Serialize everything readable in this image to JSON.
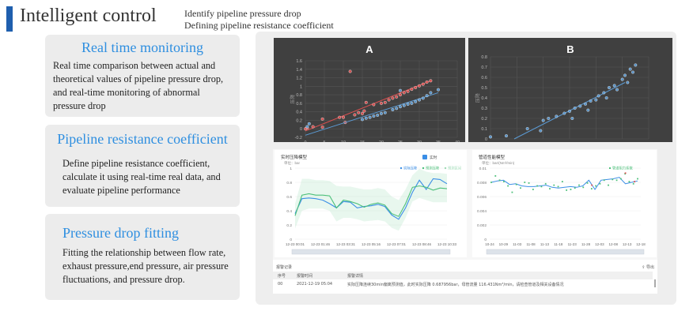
{
  "header": {
    "title": "Intelligent control",
    "subtitle_lines": [
      "Identify pipeline pressure drop",
      "Defining pipeline resistance coefficient"
    ]
  },
  "cards": [
    {
      "title": "Real time monitoring",
      "text": "Real time comparison between actual and theoretical values of pipeline pressure drop, and real-time monitoring of abnormal pressure drop"
    },
    {
      "title": "Pipeline resistance coefficient",
      "text": "Define pipeline resistance coefficient, calculate it using real-time real data, and evaluate pipeline performance"
    },
    {
      "title": "Pressure drop fitting",
      "text": "Fitting the relationship between flow rate, exhaust pressure,end pressure, air pressure fluctuations, and pressure drop."
    }
  ],
  "colors": {
    "accent": "#2f8fe0",
    "dark_bg": "#404040",
    "red": "#e05050",
    "blue": "#5b9bd5",
    "green": "#4cc07a",
    "line_blue": "#3a8ee6"
  },
  "chart_data": [
    {
      "type": "scatter",
      "title": "A",
      "ylabel": "压降",
      "xlim": [
        0,
        40
      ],
      "ylim": [
        -0.2,
        1.6
      ],
      "xticks": [
        "0",
        "5",
        "10",
        "15",
        "20",
        "25",
        "30",
        "35",
        "40"
      ],
      "yticks": [
        "-0.2",
        "0",
        "0.2",
        "0.4",
        "0.6",
        "0.8",
        "1",
        "1.2",
        "1.4",
        "1.6"
      ],
      "series": [
        {
          "color": "#e05050",
          "points": [
            [
              0,
              0
            ],
            [
              0.5,
              0.02
            ],
            [
              2,
              0.05
            ],
            [
              4.5,
              0.23
            ],
            [
              4.5,
              0.04
            ],
            [
              9,
              0.27
            ],
            [
              10,
              0.27
            ],
            [
              10.5,
              0.15
            ],
            [
              11.8,
              1.35
            ],
            [
              13,
              0.33
            ],
            [
              14,
              0.38
            ],
            [
              15,
              0.36
            ],
            [
              15.5,
              0.42
            ],
            [
              16,
              0.62
            ],
            [
              18,
              0.57
            ],
            [
              20,
              0.6
            ],
            [
              21,
              0.62
            ],
            [
              22,
              0.68
            ],
            [
              23,
              0.72
            ],
            [
              24,
              0.75
            ],
            [
              25,
              0.8
            ],
            [
              26,
              0.85
            ],
            [
              27,
              0.88
            ],
            [
              28,
              0.93
            ],
            [
              29,
              0.97
            ],
            [
              30,
              1.01
            ],
            [
              31,
              1.05
            ],
            [
              32,
              1.1
            ],
            [
              33,
              1.13
            ]
          ],
          "trend": [
            [
              0,
              -0.05
            ],
            [
              33,
              1.13
            ]
          ]
        },
        {
          "color": "#5b9bd5",
          "points": [
            [
              0.5,
              0.05
            ],
            [
              1,
              0.12
            ],
            [
              15,
              0.22
            ],
            [
              16,
              0.25
            ],
            [
              17,
              0.27
            ],
            [
              18,
              0.3
            ],
            [
              19,
              0.32
            ],
            [
              20,
              0.36
            ],
            [
              21,
              0.38
            ],
            [
              23,
              0.45
            ],
            [
              24,
              0.48
            ],
            [
              25,
              0.52
            ],
            [
              25,
              0.9
            ],
            [
              26,
              0.55
            ],
            [
              27,
              0.58
            ],
            [
              28,
              0.6
            ],
            [
              29,
              0.64
            ],
            [
              30,
              0.68
            ],
            [
              31,
              0.72
            ],
            [
              32,
              0.78
            ],
            [
              33,
              0.85
            ],
            [
              35,
              0.92
            ]
          ],
          "trend": [
            [
              0,
              -0.15
            ],
            [
              35,
              0.85
            ]
          ]
        }
      ]
    },
    {
      "type": "scatter",
      "title": "B",
      "ylabel": "压降",
      "xlim": [
        0,
        6
      ],
      "ylim": [
        0,
        0.8
      ],
      "yticks": [
        "0",
        "0.1",
        "0.2",
        "0.3",
        "0.4",
        "0.5",
        "0.6",
        "0.7",
        "0.8"
      ],
      "series": [
        {
          "color": "#5b9bd5",
          "points": [
            [
              0,
              0.02
            ],
            [
              0.6,
              0.03
            ],
            [
              1.4,
              0.1
            ],
            [
              1.9,
              0.08
            ],
            [
              2,
              0.18
            ],
            [
              2.2,
              0.2
            ],
            [
              2.5,
              0.22
            ],
            [
              2.8,
              0.25
            ],
            [
              3,
              0.27
            ],
            [
              3.1,
              0.2
            ],
            [
              3.2,
              0.3
            ],
            [
              3.4,
              0.32
            ],
            [
              3.6,
              0.34
            ],
            [
              3.7,
              0.28
            ],
            [
              3.8,
              0.37
            ],
            [
              4,
              0.38
            ],
            [
              4.1,
              0.42
            ],
            [
              4.3,
              0.45
            ],
            [
              4.4,
              0.4
            ],
            [
              4.5,
              0.5
            ],
            [
              4.7,
              0.52
            ],
            [
              4.8,
              0.48
            ],
            [
              5,
              0.58
            ],
            [
              5.1,
              0.62
            ],
            [
              5.2,
              0.55
            ],
            [
              5.3,
              0.68
            ],
            [
              5.4,
              0.65
            ],
            [
              5.5,
              0.72
            ]
          ],
          "trend": [
            [
              0.9,
              0
            ],
            [
              5.1,
              0.55
            ]
          ]
        }
      ]
    },
    {
      "type": "line",
      "title": "实时压降模型",
      "unit": "单位：bar",
      "checkbox_label": "实时",
      "checked": true,
      "legend": [
        "实际压降",
        "预测压降",
        "预测区间"
      ],
      "ylim": [
        0,
        1
      ],
      "yticks": [
        "0",
        "0.2",
        "0.4",
        "0.6",
        "0.8",
        "1"
      ],
      "xticks": [
        "12-23 00:01",
        "12-23 01:46",
        "12-23 03:31",
        "12-23 05:16",
        "12-23 07:01",
        "12-23 08:46",
        "12-23 10:33"
      ],
      "series": [
        {
          "name": "实际压降",
          "color": "#3a8ee6",
          "values": [
            0.36,
            0.57,
            0.58,
            0.57,
            0.55,
            0.5,
            0.44,
            0.53,
            0.52,
            0.44,
            0.46,
            0.47,
            0.49,
            0.46,
            0.34,
            0.28,
            0.44,
            0.66,
            0.83,
            0.7,
            0.85,
            0.84,
            0.78
          ]
        },
        {
          "name": "预测压降",
          "color": "#4cc07a",
          "values": [
            0.33,
            0.62,
            0.64,
            0.62,
            0.62,
            0.61,
            0.44,
            0.55,
            0.53,
            0.5,
            0.45,
            0.49,
            0.51,
            0.48,
            0.36,
            0.32,
            0.5,
            0.73,
            0.75,
            0.73,
            0.69,
            0.72,
            0.71
          ]
        }
      ],
      "band": {
        "upper": [
          0.5,
          0.85,
          0.85,
          0.83,
          0.83,
          0.82,
          0.75,
          0.74,
          0.74,
          0.72,
          0.7,
          0.7,
          0.72,
          0.7,
          0.6,
          0.55,
          0.7,
          0.9,
          0.99,
          0.95,
          0.93,
          0.93,
          0.92
        ],
        "lower": [
          0.15,
          0.4,
          0.43,
          0.43,
          0.43,
          0.4,
          0.25,
          0.3,
          0.3,
          0.28,
          0.25,
          0.26,
          0.27,
          0.25,
          0.16,
          0.12,
          0.3,
          0.53,
          0.58,
          0.55,
          0.52,
          0.52,
          0.52
        ]
      }
    },
    {
      "type": "line",
      "title": "管道性能模型",
      "unit": "单位：bar/(Nm³/min)",
      "legend": [
        "管道阻力系数"
      ],
      "ylim": [
        0,
        0.01
      ],
      "yticks": [
        "0",
        "0.002",
        "0.004",
        "0.006",
        "0.008",
        "0.01"
      ],
      "xticks": [
        "10-24",
        "10-29",
        "11-03",
        "11-08",
        "11-13",
        "11-18",
        "11-23",
        "11-28",
        "12-03",
        "12-08",
        "12-13",
        "12-18"
      ],
      "line": [
        0.008,
        0.0082,
        0.0083,
        0.0077,
        0.0078,
        0.0075,
        0.0074,
        0.0074,
        0.0075,
        0.0076,
        0.0073,
        0.0072,
        0.0073,
        0.0074,
        0.0073,
        0.0075,
        0.0083,
        0.007,
        0.0083,
        0.0084,
        0.0085,
        0.0087,
        0.0078,
        0.008,
        0.0082
      ],
      "points": [
        0.008,
        0.0089,
        0.0083,
        0.0081,
        0.0075,
        0.0066,
        0.0077,
        0.0072,
        0.008,
        0.0079,
        0.007,
        0.0075,
        0.0074,
        0.0078,
        0.0071,
        0.0076,
        0.0074,
        0.0081,
        0.0069,
        0.007,
        0.0072,
        0.0076,
        0.0073,
        0.0079,
        0.0071,
        0.0075,
        0.0078,
        0.0083,
        0.0076,
        0.0084,
        0.0083,
        0.0085,
        0.0092,
        0.0081,
        0.0078,
        0.0085
      ],
      "alerts": [
        [
          16.5,
          0.0076
        ],
        [
          22,
          0.0093
        ],
        [
          23.5,
          0.0081
        ]
      ]
    }
  ],
  "alarms": {
    "title": "报警记录",
    "export": "导出",
    "columns": [
      "序号",
      "报警时间",
      "报警详情"
    ],
    "rows": [
      [
        "00",
        "2021-12-19 05:04",
        "实际压降连续30min偏离预测值，此时实际压降 0.687956bar，母管流量 116.431Nm³/min，请检查管道及相关设备情况"
      ]
    ]
  }
}
